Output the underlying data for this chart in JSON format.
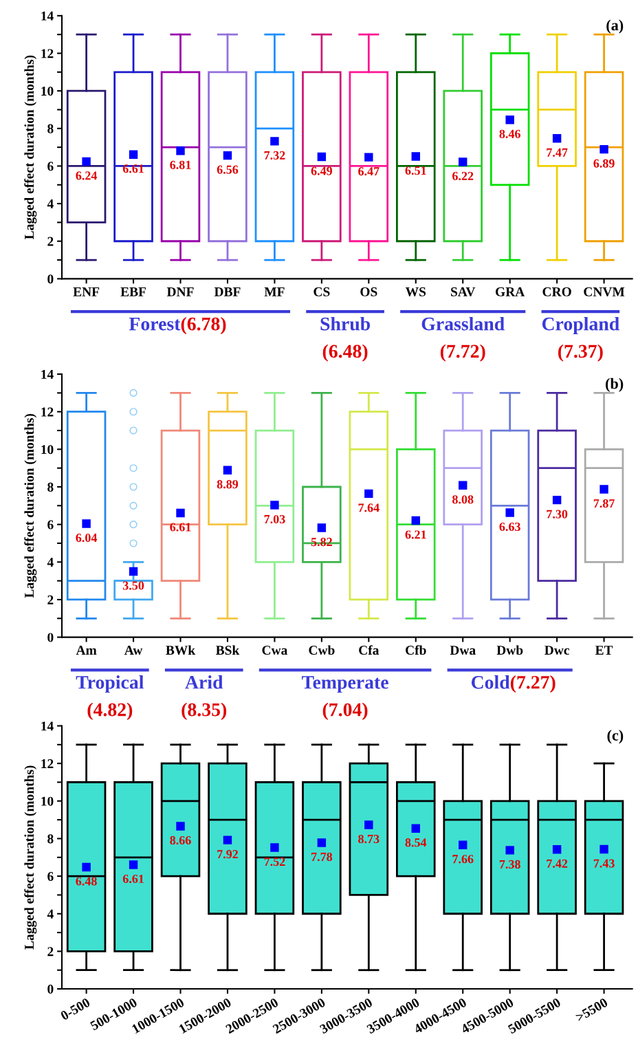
{
  "chart_data": [
    {
      "type": "box",
      "title": "(a)",
      "ylabel": "Lagged effect duration (months)",
      "categories": [
        "ENF",
        "EBF",
        "DNF",
        "DBF",
        "MF",
        "CS",
        "OS",
        "WS",
        "SAV",
        "GRA",
        "CRO",
        "CNVM"
      ],
      "ylim": [
        0,
        14
      ],
      "yticks": [
        0,
        {
          "value": 1,
          "label": null
        },
        2,
        {
          "value": 3,
          "label": null
        },
        4,
        {
          "value": 5,
          "label": null
        },
        6,
        {
          "value": 7,
          "label": null
        },
        8,
        {
          "value": 9,
          "label": null
        },
        10,
        {
          "value": 11,
          "label": null
        },
        12,
        {
          "value": 13,
          "label": null
        },
        14
      ],
      "grid": false,
      "legend": false,
      "annotations": [
        "Forest",
        "(6.78)",
        "Shrub",
        "(6.48)",
        "Grassland",
        "(7.72)",
        "Cropland",
        "(7.37)"
      ],
      "series": [
        {
          "type": "box",
          "colors": [
            "#2a1870",
            "#1a1acc",
            "#9900aa",
            "#9370db",
            "#1e90ff",
            "#cc1a77",
            "#ff1493",
            "#006400",
            "#32cd32",
            "#00e000",
            "#f0d000",
            "#f0a000"
          ],
          "boxes": [
            {
              "low": 1,
              "q1": 3,
              "median": 6,
              "q3": 10,
              "high": 13
            },
            {
              "low": 1,
              "q1": 2,
              "median": 6,
              "q3": 11,
              "high": 13
            },
            {
              "low": 1,
              "q1": 2,
              "median": 7,
              "q3": 11,
              "high": 13
            },
            {
              "low": 1,
              "q1": 2,
              "median": 7,
              "q3": 11,
              "high": 13
            },
            {
              "low": 1,
              "q1": 2,
              "median": 8,
              "q3": 11,
              "high": 13
            },
            {
              "low": 1,
              "q1": 2,
              "median": 6,
              "q3": 11,
              "high": 13
            },
            {
              "low": 1,
              "q1": 2,
              "median": 6,
              "q3": 11,
              "high": 13
            },
            {
              "low": 1,
              "q1": 2,
              "median": 6,
              "q3": 11,
              "high": 13
            },
            {
              "low": 1,
              "q1": 2,
              "median": 6,
              "q3": 10,
              "high": 13
            },
            {
              "low": 1,
              "q1": 5,
              "median": 9,
              "q3": 12,
              "high": 13
            },
            {
              "low": 1,
              "q1": 6,
              "median": 9,
              "q3": 11,
              "high": 13
            },
            {
              "low": 1,
              "q1": 2,
              "median": 7,
              "q3": 11,
              "high": 13
            }
          ]
        },
        {
          "type": "scatter",
          "marker": "square",
          "color": "#0000ff",
          "x": [
            "ENF",
            "EBF",
            "DNF",
            "DBF",
            "MF",
            "CS",
            "OS",
            "WS",
            "SAV",
            "GRA",
            "CRO",
            "CNVM"
          ],
          "values": [
            6.24,
            6.61,
            6.81,
            6.56,
            7.32,
            6.49,
            6.47,
            6.51,
            6.22,
            8.46,
            7.47,
            6.89
          ],
          "value_labels": [
            "6.24",
            "6.61",
            "6.81",
            "6.56",
            "7.32",
            "6.49",
            "6.47",
            "6.51",
            "6.22",
            "8.46",
            "7.47",
            "6.89"
          ]
        }
      ]
    },
    {
      "type": "box",
      "title": "(b)",
      "ylabel": "Lagged effect duration (months)",
      "categories": [
        "Am",
        "Aw",
        "BWk",
        "BSk",
        "Cwa",
        "Cwb",
        "Cfa",
        "Cfb",
        "Dwa",
        "Dwb",
        "Dwc",
        "ET"
      ],
      "ylim": [
        0,
        14
      ],
      "yticks": [
        0,
        {
          "value": 1,
          "label": null
        },
        2,
        {
          "value": 3,
          "label": null
        },
        4,
        {
          "value": 5,
          "label": null
        },
        6,
        {
          "value": 7,
          "label": null
        },
        8,
        {
          "value": 9,
          "label": null
        },
        10,
        {
          "value": 11,
          "label": null
        },
        12,
        {
          "value": 13,
          "label": null
        },
        14
      ],
      "grid": false,
      "legend": false,
      "annotations": [
        "Tropical",
        "(4.82)",
        "Arid",
        "(8.35)",
        "Temperate",
        "(7.04)",
        "Cold",
        "(7.27)"
      ],
      "series": [
        {
          "type": "box",
          "colors": [
            "#2288ee",
            "#40a8f0",
            "#f08878",
            "#f5c542",
            "#90ee90",
            "#3cb34a",
            "#d4e84a",
            "#33dd33",
            "#b0a0f0",
            "#6a7ad8",
            "#4b2aa0",
            "#aaaaaa"
          ],
          "boxes": [
            {
              "low": 1,
              "q1": 2,
              "median": 3,
              "q3": 12,
              "high": 13
            },
            {
              "low": 1,
              "q1": 2,
              "median": 3,
              "q3": 3,
              "high": 4,
              "outliers": [
                5,
                6,
                7,
                8,
                9,
                11,
                12,
                13
              ]
            },
            {
              "low": 1,
              "q1": 3,
              "median": 6,
              "q3": 11,
              "high": 13
            },
            {
              "low": 1,
              "q1": 6,
              "median": 11,
              "q3": 12,
              "high": 13
            },
            {
              "low": 1,
              "q1": 4,
              "median": 7,
              "q3": 11,
              "high": 13
            },
            {
              "low": 1,
              "q1": 4,
              "median": 5,
              "q3": 8,
              "high": 13
            },
            {
              "low": 1,
              "q1": 2,
              "median": 10,
              "q3": 12,
              "high": 13
            },
            {
              "low": 1,
              "q1": 2,
              "median": 6,
              "q3": 10,
              "high": 13
            },
            {
              "low": 1,
              "q1": 6,
              "median": 9,
              "q3": 11,
              "high": 13
            },
            {
              "low": 1,
              "q1": 2,
              "median": 7,
              "q3": 11,
              "high": 13
            },
            {
              "low": 1,
              "q1": 3,
              "median": 9,
              "q3": 11,
              "high": 13
            },
            {
              "low": 1,
              "q1": 4,
              "median": 9,
              "q3": 10,
              "high": 13
            }
          ]
        },
        {
          "type": "scatter",
          "marker": "square",
          "color": "#0000ff",
          "x": [
            "Am",
            "Aw",
            "BWk",
            "BSk",
            "Cwa",
            "Cwb",
            "Cfa",
            "Cfb",
            "Dwa",
            "Dwb",
            "Dwc",
            "ET"
          ],
          "values": [
            6.04,
            3.5,
            6.61,
            8.89,
            7.03,
            5.82,
            7.64,
            6.21,
            8.08,
            6.63,
            7.3,
            7.87
          ],
          "value_labels": [
            "6.04",
            "3.50",
            "6.61",
            "8.89",
            "7.03",
            "5.82",
            "7.64",
            "6.21",
            "8.08",
            "6.63",
            "7.30",
            "7.87"
          ]
        }
      ]
    },
    {
      "type": "box",
      "title": "(c)",
      "ylabel": "Lagged effect duration (months)",
      "categories": [
        "0-500",
        "500-1000",
        "1000-1500",
        "1500-2000",
        "2000-2500",
        "2500-3000",
        "3000-3500",
        "3500-4000",
        "4000-4500",
        "4500-5000",
        "5000-5500",
        ">5500"
      ],
      "ylim": [
        0,
        14
      ],
      "yticks": [
        0,
        {
          "value": 1,
          "label": null
        },
        2,
        {
          "value": 3,
          "label": null
        },
        4,
        {
          "value": 5,
          "label": null
        },
        6,
        {
          "value": 7,
          "label": null
        },
        8,
        {
          "value": 9,
          "label": null
        },
        10,
        {
          "value": 11,
          "label": null
        },
        12,
        {
          "value": 13,
          "label": null
        },
        14
      ],
      "grid": false,
      "legend": false,
      "series": [
        {
          "type": "box",
          "color": "#000000",
          "colors": [
            "#40e0d0",
            "#40e0d0",
            "#40e0d0",
            "#40e0d0",
            "#40e0d0",
            "#40e0d0",
            "#40e0d0",
            "#40e0d0",
            "#40e0d0",
            "#40e0d0",
            "#40e0d0",
            "#40e0d0"
          ],
          "boxes": [
            {
              "low": 1,
              "q1": 2,
              "median": 6,
              "q3": 11,
              "high": 13
            },
            {
              "low": 1,
              "q1": 2,
              "median": 7,
              "q3": 11,
              "high": 13
            },
            {
              "low": 1,
              "q1": 6,
              "median": 10,
              "q3": 12,
              "high": 13
            },
            {
              "low": 1,
              "q1": 4,
              "median": 9,
              "q3": 12,
              "high": 13
            },
            {
              "low": 1,
              "q1": 4,
              "median": 7,
              "q3": 11,
              "high": 13
            },
            {
              "low": 1,
              "q1": 4,
              "median": 9,
              "q3": 11,
              "high": 13
            },
            {
              "low": 1,
              "q1": 5,
              "median": 11,
              "q3": 12,
              "high": 13
            },
            {
              "low": 1,
              "q1": 6,
              "median": 10,
              "q3": 11,
              "high": 13
            },
            {
              "low": 1,
              "q1": 4,
              "median": 9,
              "q3": 10,
              "high": 13
            },
            {
              "low": 1,
              "q1": 4,
              "median": 9,
              "q3": 10,
              "high": 13
            },
            {
              "low": 1,
              "q1": 4,
              "median": 9,
              "q3": 10,
              "high": 13
            },
            {
              "low": 1,
              "q1": 4,
              "median": 9,
              "q3": 10,
              "high": 12
            }
          ]
        },
        {
          "type": "scatter",
          "marker": "square",
          "color": "#0000ff",
          "x": [
            "0-500",
            "500-1000",
            "1000-1500",
            "1500-2000",
            "2000-2500",
            "2500-3000",
            "3000-3500",
            "3500-4000",
            "4000-4500",
            "4500-5000",
            "5000-5500",
            ">5500"
          ],
          "values": [
            6.48,
            6.61,
            8.66,
            7.92,
            7.52,
            7.78,
            8.73,
            8.54,
            7.66,
            7.38,
            7.42,
            7.43
          ],
          "value_labels": [
            "6.48",
            "6.61",
            "8.66",
            "7.92",
            "7.52",
            "7.78",
            "8.73",
            "8.54",
            "7.66",
            "7.38",
            "7.42",
            "7.43"
          ]
        }
      ]
    }
  ]
}
